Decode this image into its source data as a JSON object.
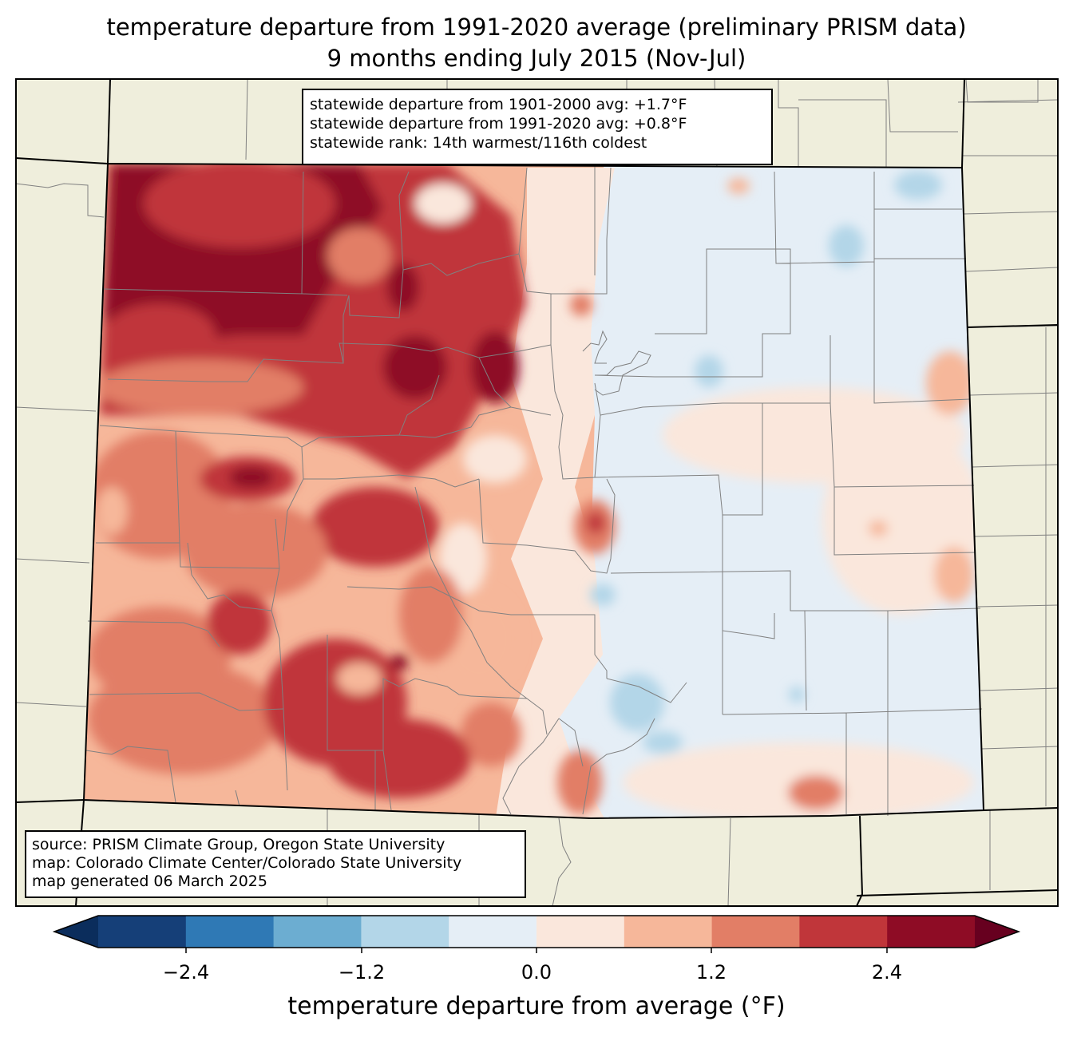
{
  "title": {
    "line1": "temperature departure from 1991-2020 average (preliminary PRISM data)",
    "line2": "9 months ending July 2015 (Nov-Jul)"
  },
  "stats": {
    "line1": "statewide departure from 1901-2000 avg: +1.7°F",
    "line2": "statewide departure from 1991-2020 avg: +0.8°F",
    "line3": "statewide rank: 14th warmest/116th coldest"
  },
  "source": {
    "line1": "source: PRISM Climate Group, Oregon State University",
    "line2": "map: Colorado Climate Center/Colorado State University",
    "line3": "map generated 06 March 2025"
  },
  "colorbar": {
    "label": "temperature departure from average (°F)",
    "ticks": [
      "−2.4",
      "−1.2",
      "0.0",
      "1.2",
      "2.4"
    ],
    "bins": [
      "#153f78",
      "#2f79b5",
      "#6cadd1",
      "#b3d6e8",
      "#e5eef6",
      "#fae7dc",
      "#f6b79a",
      "#e27e66",
      "#c0363a",
      "#8e0c25"
    ],
    "under_color": "#0b2d5c",
    "over_color": "#67001f"
  },
  "colors": {
    "land": "#efeedc",
    "outline": "#000000",
    "county_lines": "#808080"
  }
}
